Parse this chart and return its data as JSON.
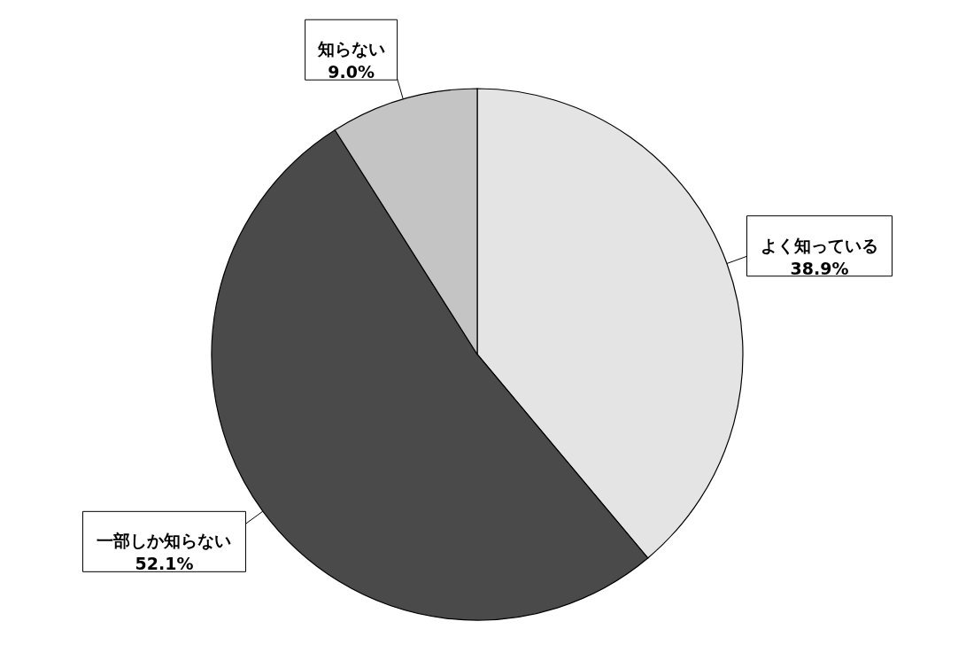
{
  "chart_data": {
    "type": "pie",
    "categories": [
      "よく知っている",
      "一部しか知らない",
      "知らない"
    ],
    "values": [
      38.9,
      52.1,
      9.0
    ],
    "colors": [
      "#e4e4e4",
      "#4a4a4a",
      "#c4c4c4"
    ],
    "value_labels": [
      "38.9%",
      "52.1%",
      "9.0%"
    ]
  }
}
